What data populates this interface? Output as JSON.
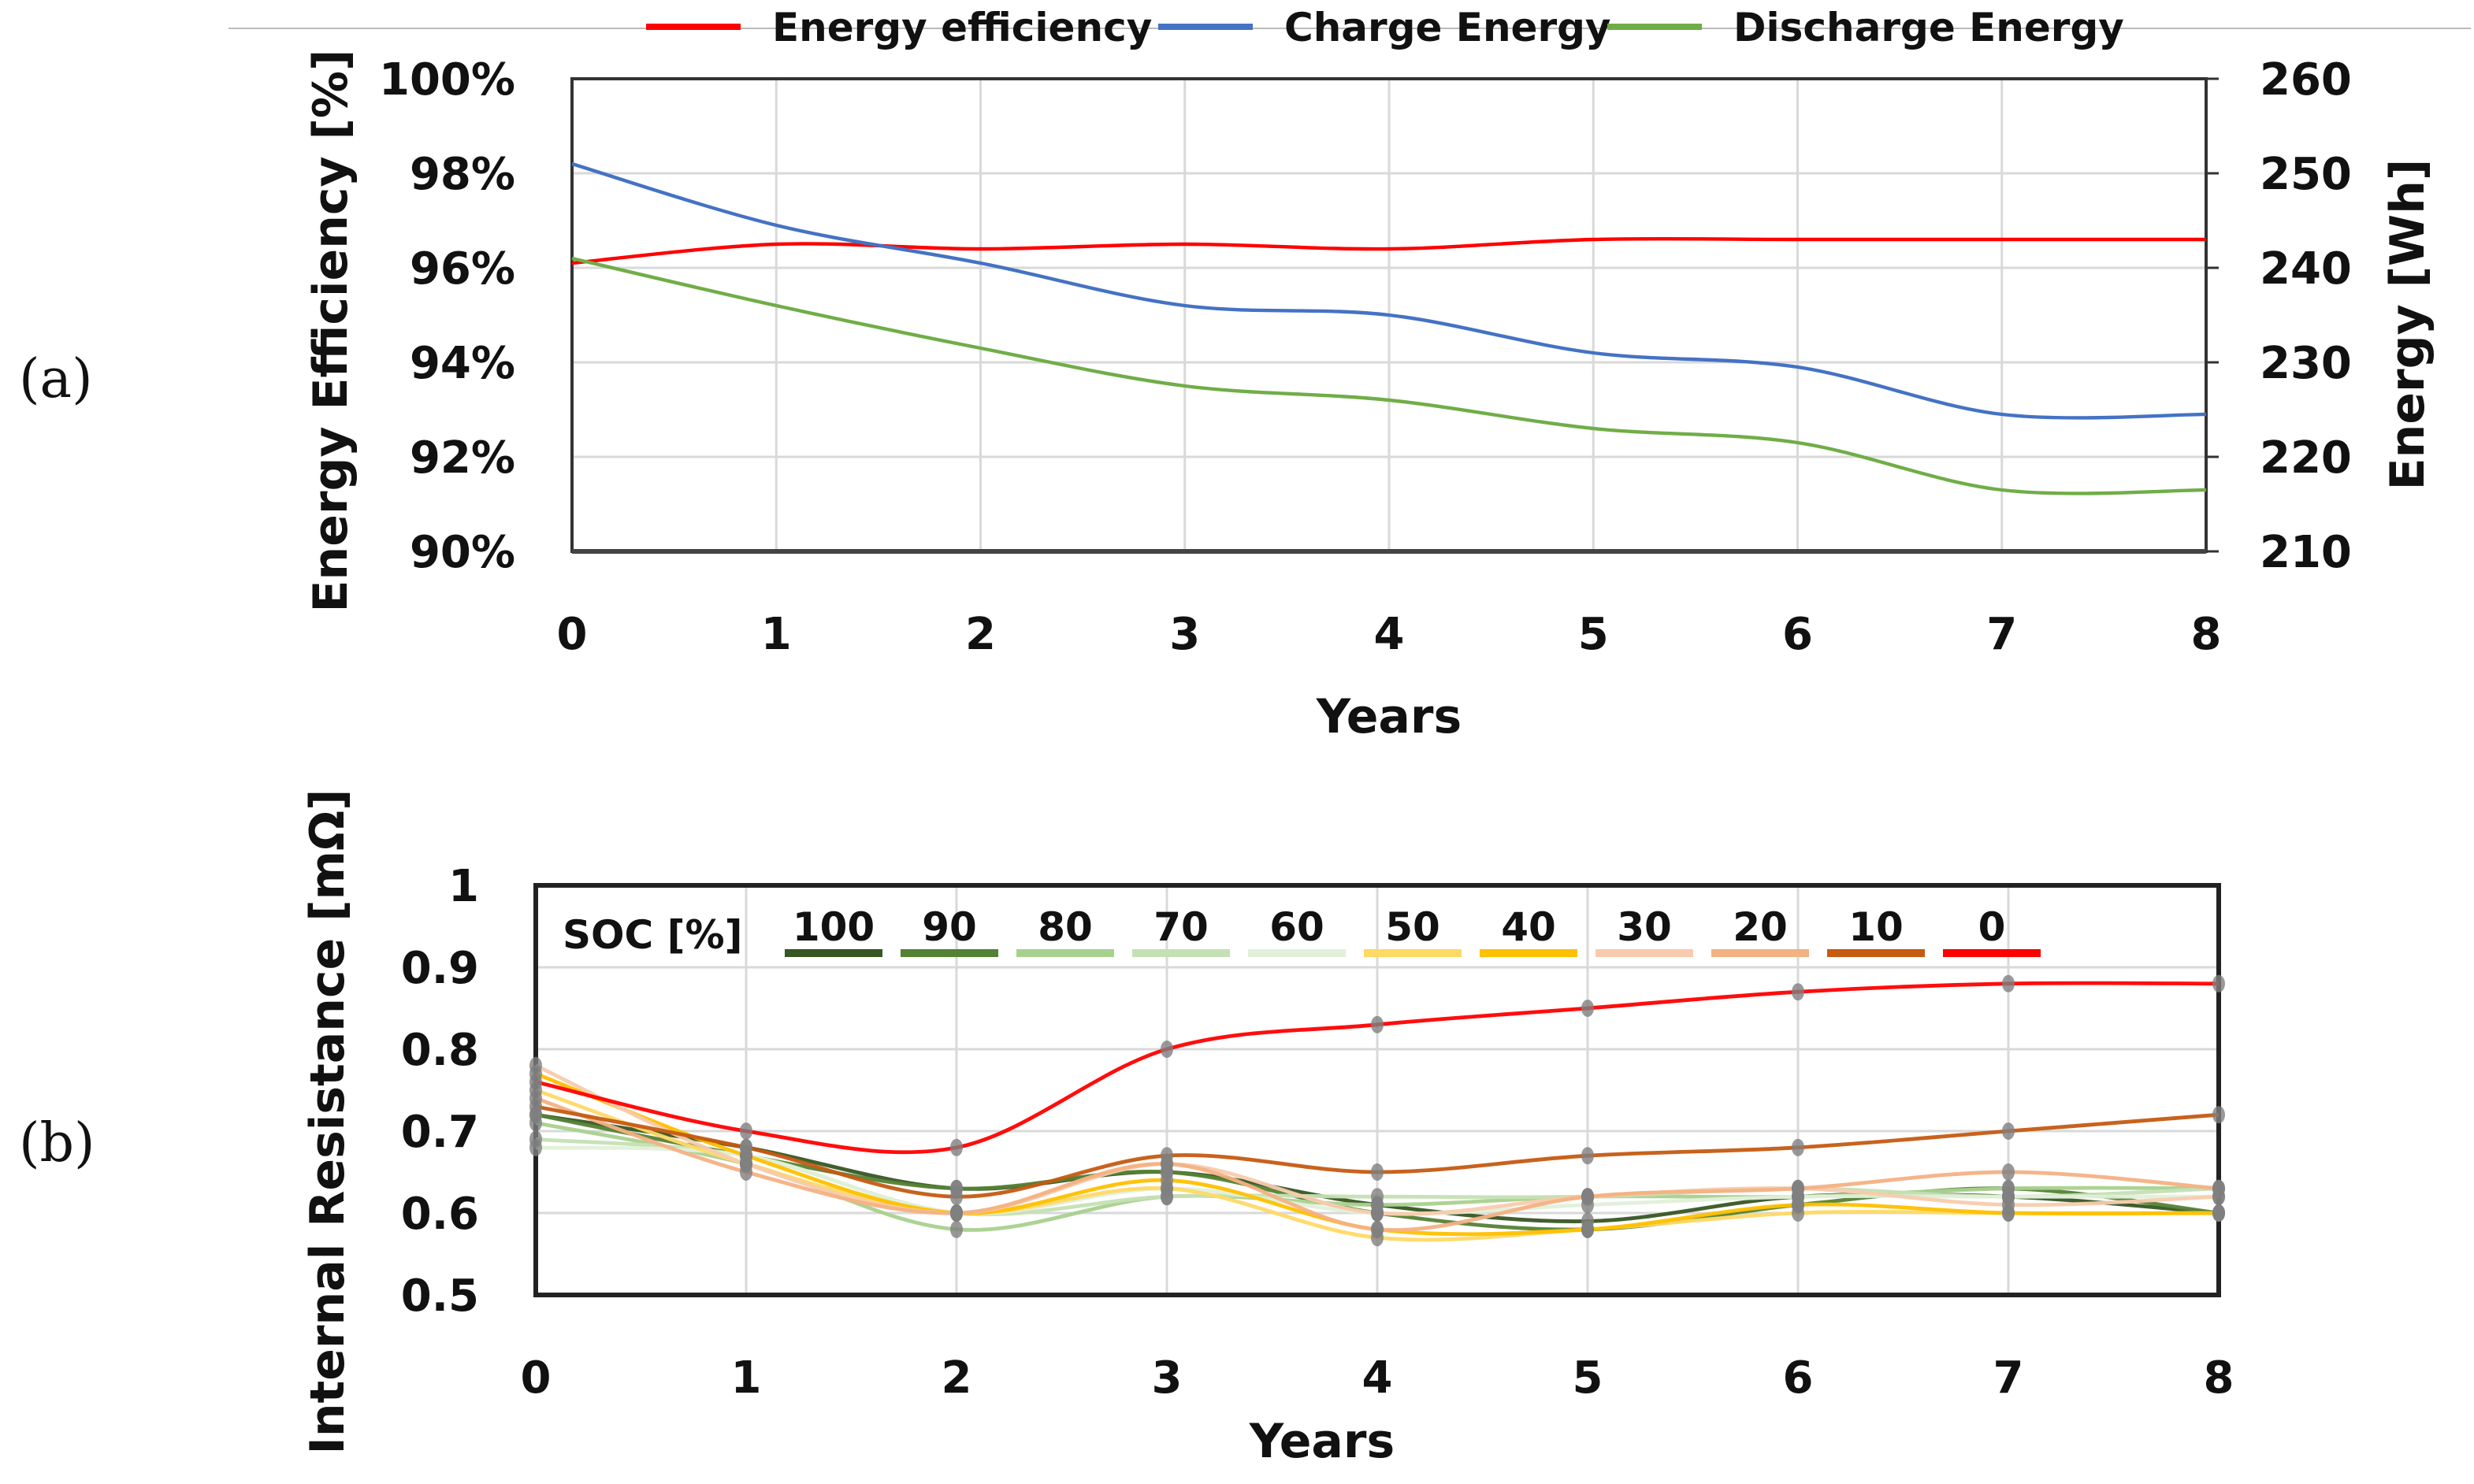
{
  "chart_data": [
    {
      "panel_label": "(a)",
      "type": "line",
      "xlabel": "Years",
      "ylabel": "Energy Efficiency [%]",
      "y2label": "Energy [Wh]",
      "x": [
        0,
        1,
        2,
        3,
        4,
        5,
        6,
        7,
        8
      ],
      "xlim": [
        0,
        8
      ],
      "ylim": [
        90,
        100
      ],
      "y2lim": [
        210,
        260
      ],
      "yticks": [
        "90%",
        "92%",
        "94%",
        "96%",
        "98%",
        "100%"
      ],
      "y2ticks": [
        "210",
        "220",
        "230",
        "240",
        "250",
        "260"
      ],
      "xticks": [
        "0",
        "1",
        "2",
        "3",
        "4",
        "5",
        "6",
        "7",
        "8"
      ],
      "grid": true,
      "legend": "top",
      "series": [
        {
          "name": "Energy efficiency",
          "axis": "left",
          "color": "#ff0000",
          "values": [
            96.1,
            96.5,
            96.4,
            96.5,
            96.4,
            96.6,
            96.6,
            96.6,
            96.6
          ]
        },
        {
          "name": "Charge Energy",
          "axis": "right",
          "color": "#4472c4",
          "values": [
            251,
            244.5,
            240.5,
            236,
            235,
            231,
            229.5,
            224.5,
            224.5
          ]
        },
        {
          "name": "Discharge Energy",
          "axis": "right",
          "color": "#70ad47",
          "values": [
            241,
            236,
            231.5,
            227.5,
            226,
            223,
            221.5,
            216.5,
            216.5
          ]
        }
      ]
    },
    {
      "panel_label": "(b)",
      "type": "line",
      "xlabel": "Years",
      "ylabel": "Internal Resistance [mΩ]",
      "x": [
        0,
        1,
        2,
        3,
        4,
        5,
        6,
        7,
        8
      ],
      "xlim": [
        0,
        8
      ],
      "ylim": [
        0.5,
        1
      ],
      "yticks": [
        "0.5",
        "0.6",
        "0.7",
        "0.8",
        "0.9",
        "1"
      ],
      "xticks": [
        "0",
        "1",
        "2",
        "3",
        "4",
        "5",
        "6",
        "7",
        "8"
      ],
      "grid": true,
      "legend_title": "SOC [%]",
      "legend": "top-inside",
      "marker_color": "#808080",
      "series": [
        {
          "name": "100",
          "color": "#375623",
          "values": [
            0.72,
            0.68,
            0.63,
            0.65,
            0.61,
            0.59,
            0.62,
            0.62,
            0.6
          ]
        },
        {
          "name": "90",
          "color": "#548235",
          "values": [
            0.72,
            0.67,
            0.63,
            0.65,
            0.6,
            0.58,
            0.61,
            0.63,
            0.6
          ]
        },
        {
          "name": "80",
          "color": "#a9d18e",
          "values": [
            0.71,
            0.66,
            0.58,
            0.62,
            0.61,
            0.62,
            0.62,
            0.63,
            0.63
          ]
        },
        {
          "name": "70",
          "color": "#c5e0b4",
          "values": [
            0.69,
            0.67,
            0.6,
            0.62,
            0.62,
            0.62,
            0.63,
            0.62,
            0.63
          ]
        },
        {
          "name": "60",
          "color": "#e2f0d9",
          "values": [
            0.68,
            0.67,
            0.6,
            0.63,
            0.6,
            0.61,
            0.62,
            0.62,
            0.62
          ]
        },
        {
          "name": "50",
          "color": "#ffd966",
          "values": [
            0.75,
            0.66,
            0.6,
            0.63,
            0.57,
            0.58,
            0.6,
            0.6,
            0.6
          ]
        },
        {
          "name": "40",
          "color": "#ffc000",
          "values": [
            0.77,
            0.67,
            0.6,
            0.64,
            0.58,
            0.58,
            0.61,
            0.6,
            0.6
          ]
        },
        {
          "name": "30",
          "color": "#f8cbad",
          "values": [
            0.78,
            0.66,
            0.6,
            0.66,
            0.6,
            0.62,
            0.63,
            0.61,
            0.62
          ]
        },
        {
          "name": "20",
          "color": "#f4b183",
          "values": [
            0.74,
            0.65,
            0.6,
            0.66,
            0.58,
            0.62,
            0.63,
            0.65,
            0.63
          ]
        },
        {
          "name": "10",
          "color": "#c55a11",
          "values": [
            0.73,
            0.68,
            0.62,
            0.67,
            0.65,
            0.67,
            0.68,
            0.7,
            0.72
          ]
        },
        {
          "name": "0",
          "color": "#ff0000",
          "values": [
            0.76,
            0.7,
            0.68,
            0.8,
            0.83,
            0.85,
            0.87,
            0.88,
            0.88
          ]
        }
      ]
    }
  ]
}
